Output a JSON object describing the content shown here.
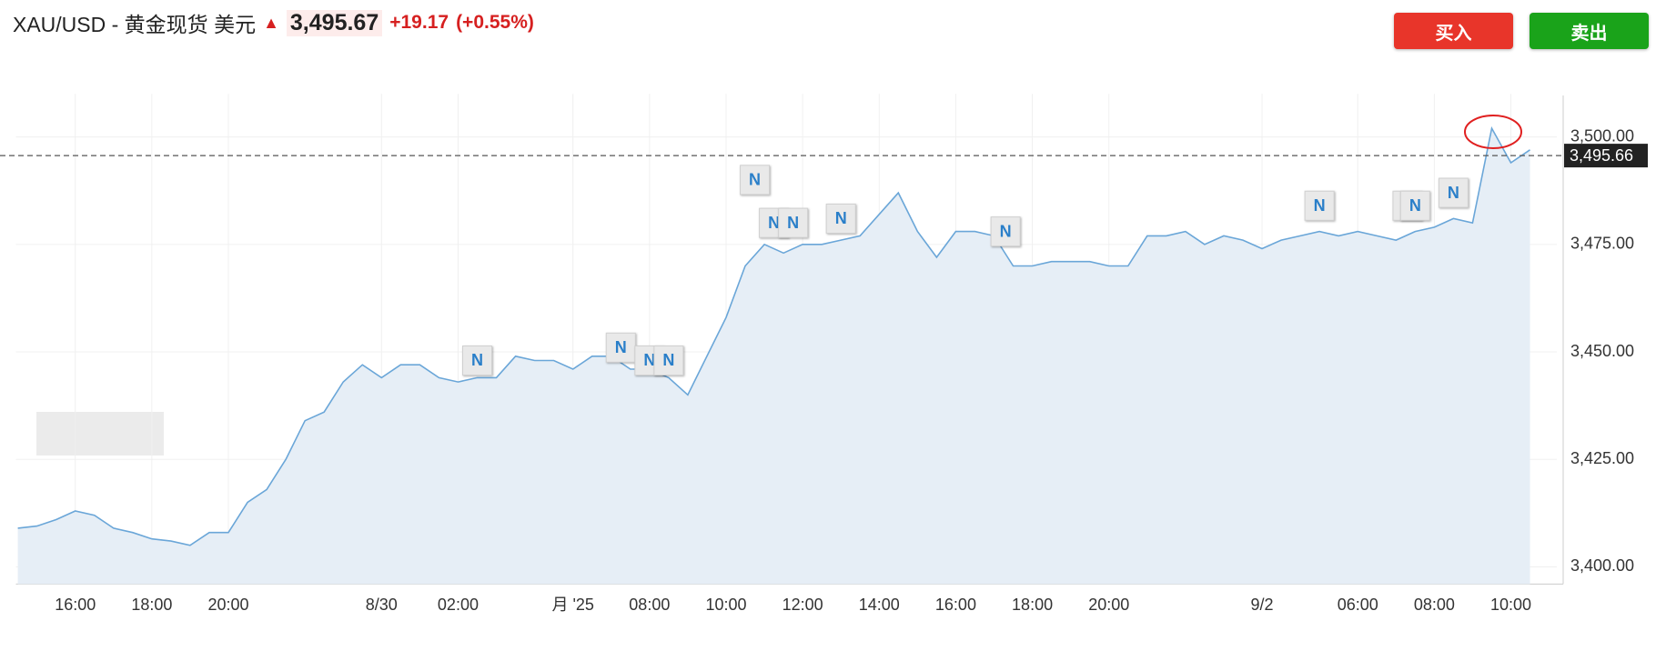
{
  "header": {
    "symbol": "XAU/USD - 黄金现货 美元",
    "price": "3,495.67",
    "change": "+19.17",
    "change_pct": "(+0.55%)"
  },
  "buttons": {
    "buy": "买入",
    "sell": "卖出"
  },
  "chart_data": {
    "type": "area",
    "x": [
      0,
      1,
      2,
      3,
      4,
      5,
      6,
      7,
      8,
      9,
      10,
      11,
      12,
      13,
      14,
      15,
      16,
      17,
      18,
      19,
      20,
      21,
      22,
      23,
      24,
      25,
      26,
      27,
      28,
      29,
      30,
      31,
      32,
      33,
      34,
      35,
      36,
      37,
      38,
      39,
      40,
      41,
      42,
      43,
      44,
      45,
      46,
      47,
      48,
      49,
      50,
      51,
      52,
      53,
      54,
      55,
      56,
      57,
      58,
      59,
      60,
      61,
      62,
      63,
      64,
      65,
      66,
      67,
      68,
      69,
      70,
      71,
      72,
      73,
      74,
      75,
      76,
      77,
      78,
      79
    ],
    "series": [
      {
        "color": "#6aa6d8",
        "values": [
          3409,
          3409.5,
          3411,
          3413,
          3412,
          3409,
          3408,
          3406.5,
          3406,
          3405,
          3408,
          3408,
          3415,
          3418,
          3425,
          3434,
          3436,
          3443,
          3447,
          3444,
          3447,
          3447,
          3444,
          3443,
          3444,
          3444,
          3449,
          3448,
          3448,
          3446,
          3449,
          3449,
          3446,
          3446,
          3444,
          3440,
          3449,
          3458,
          3470,
          3475,
          3473,
          3475,
          3475,
          3476,
          3477,
          3482,
          3487,
          3478,
          3472,
          3478,
          3478,
          3477,
          3470,
          3470,
          3471,
          3471,
          3471,
          3470,
          3470,
          3477,
          3477,
          3478,
          3475,
          3477,
          3476,
          3474,
          3476,
          3477,
          3478,
          3477,
          3478,
          3477,
          3476,
          3478,
          3479,
          3481,
          3480,
          3502,
          3494,
          3497
        ]
      }
    ],
    "xlim": [
      -0.1,
      80.4
    ],
    "xticks": [
      {
        "value": 3,
        "label": "16:00"
      },
      {
        "value": 7,
        "label": "18:00"
      },
      {
        "value": 11,
        "label": "20:00"
      },
      {
        "value": 19,
        "label": "8/30"
      },
      {
        "value": 23,
        "label": "02:00"
      },
      {
        "value": 29,
        "label": "月 '25"
      },
      {
        "value": 33,
        "label": "08:00"
      },
      {
        "value": 37,
        "label": "10:00"
      },
      {
        "value": 41,
        "label": "12:00"
      },
      {
        "value": 45,
        "label": "14:00"
      },
      {
        "value": 49,
        "label": "16:00"
      },
      {
        "value": 53,
        "label": "18:00"
      },
      {
        "value": 57,
        "label": "20:00"
      },
      {
        "value": 65,
        "label": "9/2"
      },
      {
        "value": 70,
        "label": "06:00"
      },
      {
        "value": 74,
        "label": "08:00"
      },
      {
        "value": 78,
        "label": "10:00"
      }
    ],
    "ylim": [
      3396,
      3510
    ],
    "yticks": [
      {
        "value": 3400,
        "label": "3,400.00"
      },
      {
        "value": 3425,
        "label": "3,425.00"
      },
      {
        "value": 3450,
        "label": "3,450.00"
      },
      {
        "value": 3475,
        "label": "3,475.00"
      },
      {
        "value": 3500,
        "label": "3,500.00"
      }
    ],
    "last_price": {
      "value": 3495.66,
      "label": "3,495.66"
    },
    "grid": true,
    "annotations": [
      {
        "text": "N",
        "x": 24,
        "y": 3448
      },
      {
        "text": "N",
        "x": 31.5,
        "y": 3451
      },
      {
        "text": "N",
        "x": 33,
        "y": 3448
      },
      {
        "text": "N",
        "x": 34,
        "y": 3448
      },
      {
        "text": "N",
        "x": 38.5,
        "y": 3490
      },
      {
        "text": "N",
        "x": 39.5,
        "y": 3480
      },
      {
        "text": "N",
        "x": 40.5,
        "y": 3480
      },
      {
        "text": "N",
        "x": 43,
        "y": 3481
      },
      {
        "text": "N",
        "x": 51.6,
        "y": 3478
      },
      {
        "text": "N",
        "x": 68,
        "y": 3484
      },
      {
        "text": "N",
        "x": 72.6,
        "y": 3484
      },
      {
        "text": "N",
        "x": 73,
        "y": 3484
      },
      {
        "text": "N",
        "x": 75,
        "y": 3487
      }
    ]
  }
}
